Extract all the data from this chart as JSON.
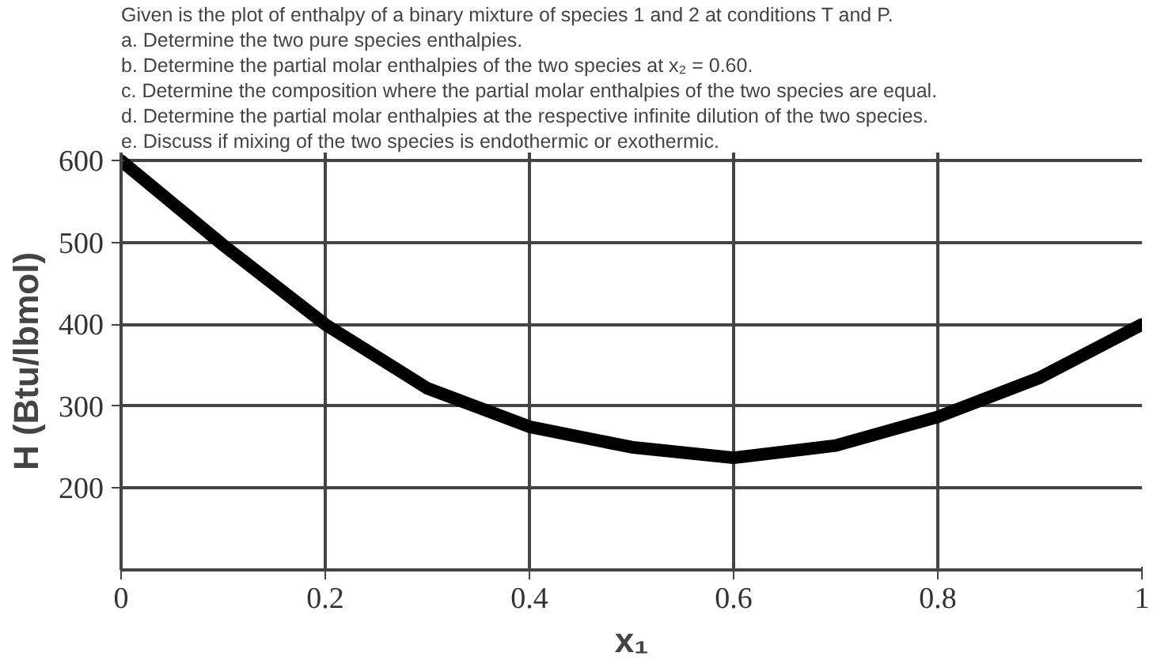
{
  "chart_data": {
    "type": "line",
    "title": "Given is the plot of enthalpy of a binary mixture of species 1 and 2 at conditions T and P.",
    "annotations": [
      "a. Determine the two pure species enthalpies.",
      "b. Determine the partial molar enthalpies of the two species at x₂ = 0.60.",
      "c. Determine the composition where the partial molar enthalpies of the two species are equal.",
      "d. Determine the partial molar enthalpies at the respective infinite dilution of the two species.",
      "e. Discuss if mixing of the two species is endothermic or exothermic."
    ],
    "xlabel": "x₁",
    "ylabel": "H (Btu/lbmol)",
    "x": [
      0,
      0.1,
      0.2,
      0.3,
      0.4,
      0.5,
      0.6,
      0.7,
      0.8,
      0.9,
      1.0
    ],
    "series": [
      {
        "color": "#000000",
        "values": [
          600,
          497,
          400,
          322,
          275,
          250,
          237,
          252,
          287,
          335,
          400
        ]
      }
    ],
    "xlim": [
      0,
      1
    ],
    "ylim": [
      100,
      610
    ],
    "xticks": [
      0,
      0.2,
      0.4,
      0.6,
      0.8,
      1
    ],
    "yticks": [
      200,
      300,
      400,
      500,
      600
    ],
    "grid": true,
    "marker": "none",
    "line_style": "solid"
  }
}
